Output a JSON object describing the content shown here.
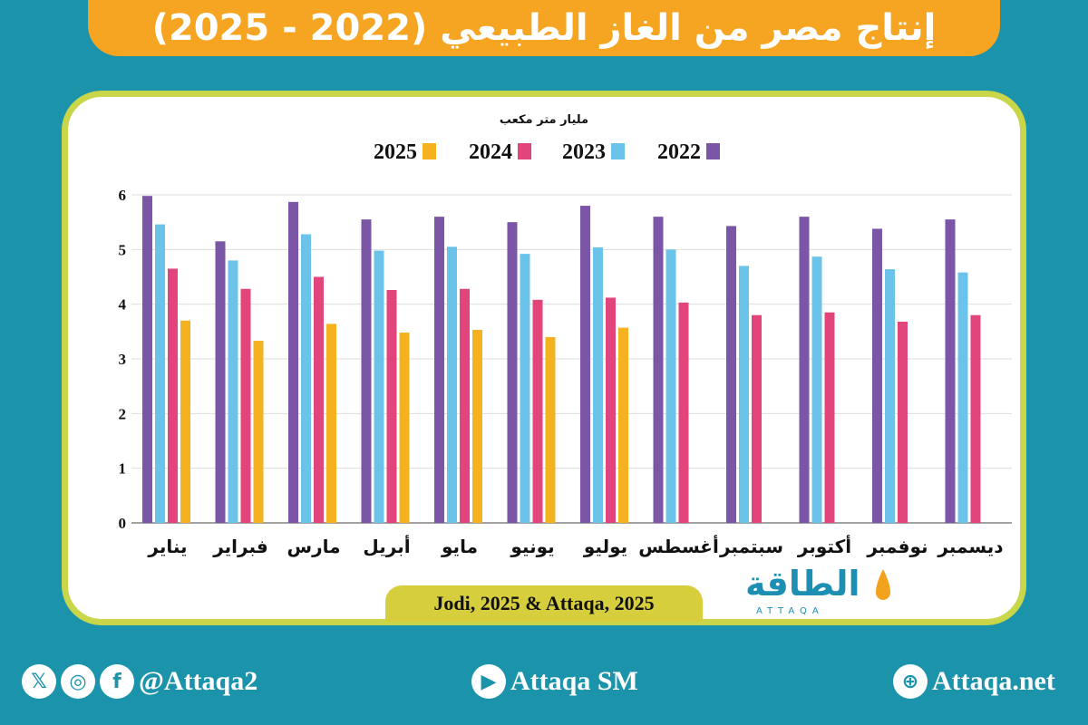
{
  "title": "إنتاج مصر من الغاز الطبيعي (2022 - 2025)",
  "source": "Jodi, 2025 & Attaqa, 2025",
  "logo": {
    "arabic": "الطاقة",
    "latin": "ATTAQA"
  },
  "footer": {
    "handle": "@Attaqa2",
    "youtube": "Attaqa SM",
    "website": "Attaqa.net"
  },
  "colors": {
    "background": "#1b93ab",
    "title_bar": "#f6a522",
    "card_border": "#c9d64a",
    "source_pill": "#d6ce3c"
  },
  "chart_data": {
    "type": "bar",
    "unit_label": "مليار متر مكعب",
    "categories": [
      "يناير",
      "فبراير",
      "مارس",
      "أبريل",
      "مايو",
      "يونيو",
      "يوليو",
      "أغسطس",
      "سبتمبر",
      "أكتوبر",
      "نوفمبر",
      "ديسمبر"
    ],
    "series": [
      {
        "name": "2022",
        "color": "#7b55a6",
        "values": [
          5.98,
          5.15,
          5.87,
          5.55,
          5.6,
          5.5,
          5.8,
          5.6,
          5.43,
          5.6,
          5.38,
          5.55
        ]
      },
      {
        "name": "2023",
        "color": "#6cc3ea",
        "values": [
          5.46,
          4.8,
          5.28,
          4.98,
          5.05,
          4.92,
          5.04,
          5.0,
          4.7,
          4.87,
          4.64,
          4.58
        ]
      },
      {
        "name": "2024",
        "color": "#e2457c",
        "values": [
          4.65,
          4.28,
          4.5,
          4.26,
          4.28,
          4.08,
          4.12,
          4.03,
          3.8,
          3.85,
          3.68,
          3.8
        ]
      },
      {
        "name": "2025",
        "color": "#f4b120",
        "values": [
          3.7,
          3.33,
          3.64,
          3.48,
          3.53,
          3.4,
          3.57,
          null,
          null,
          null,
          null,
          null
        ]
      }
    ],
    "ylim": [
      0,
      6
    ],
    "yticks": [
      0,
      1,
      2,
      3,
      4,
      5,
      6
    ],
    "grid": true,
    "legend_position": "top"
  }
}
